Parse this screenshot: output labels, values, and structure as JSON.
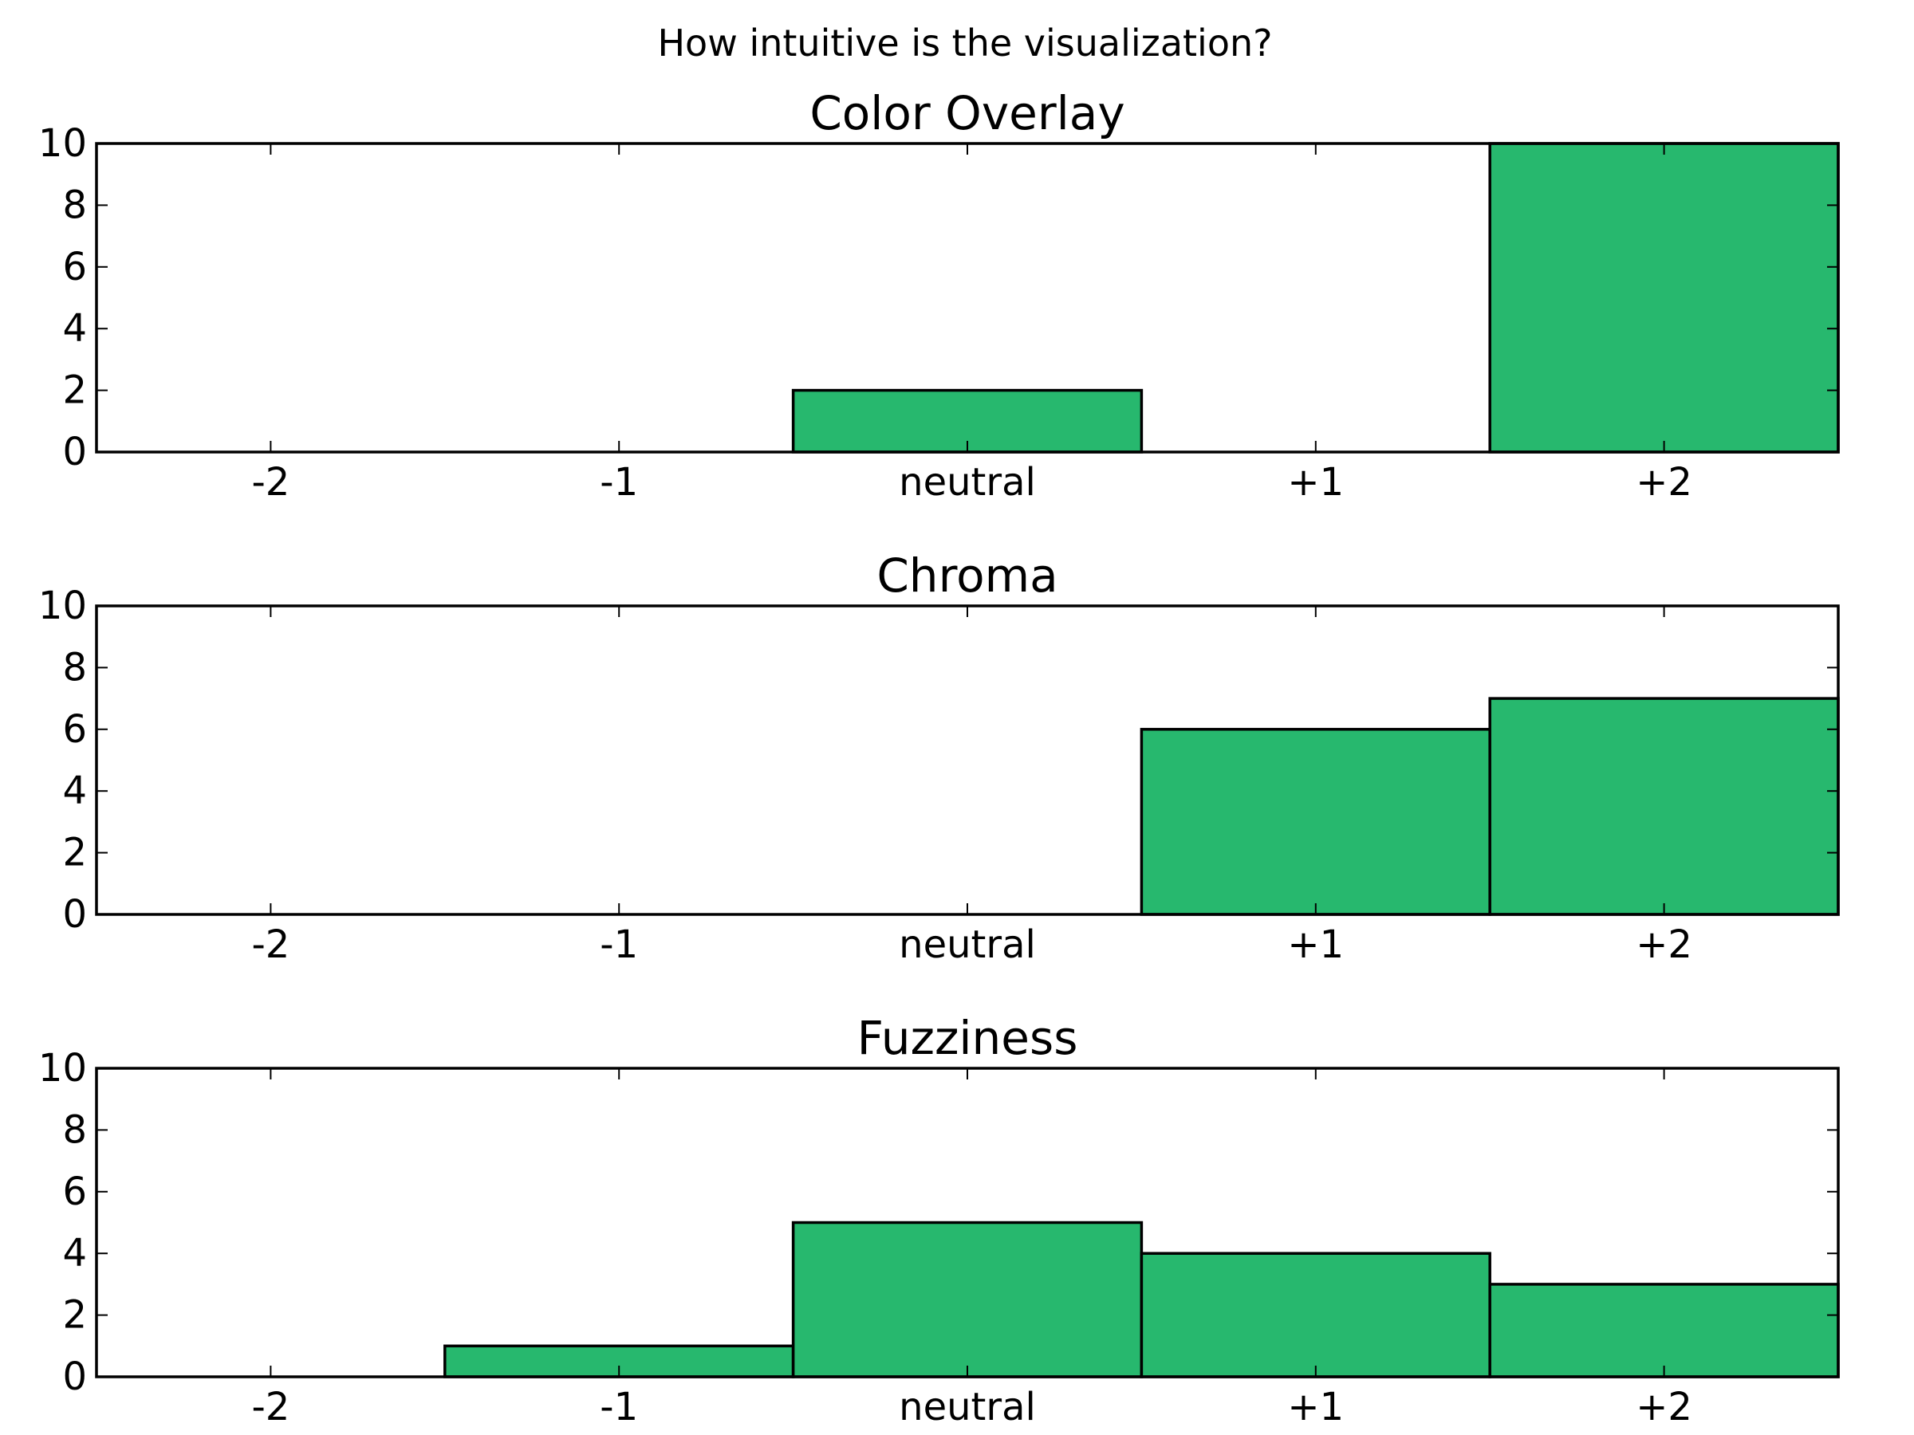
{
  "suptitle": "How intuitive is the visualization?",
  "colors": {
    "bar_fill": "#27b86e",
    "bar_edge": "#000000",
    "axes": "#000000"
  },
  "chart_data": [
    {
      "type": "bar",
      "title": "Color Overlay",
      "categories": [
        "-2",
        "-1",
        "neutral",
        "+1",
        "+2"
      ],
      "values": [
        0,
        0,
        2,
        0,
        10
      ],
      "ylim": [
        0,
        10
      ],
      "yticks": [
        0,
        2,
        4,
        6,
        8,
        10
      ],
      "grid": false
    },
    {
      "type": "bar",
      "title": "Chroma",
      "categories": [
        "-2",
        "-1",
        "neutral",
        "+1",
        "+2"
      ],
      "values": [
        0,
        0,
        0,
        6,
        7
      ],
      "ylim": [
        0,
        10
      ],
      "yticks": [
        0,
        2,
        4,
        6,
        8,
        10
      ],
      "grid": false
    },
    {
      "type": "bar",
      "title": "Fuzziness",
      "categories": [
        "-2",
        "-1",
        "neutral",
        "+1",
        "+2"
      ],
      "values": [
        0,
        1,
        5,
        4,
        3
      ],
      "ylim": [
        0,
        10
      ],
      "yticks": [
        0,
        2,
        4,
        6,
        8,
        10
      ],
      "grid": false
    }
  ]
}
